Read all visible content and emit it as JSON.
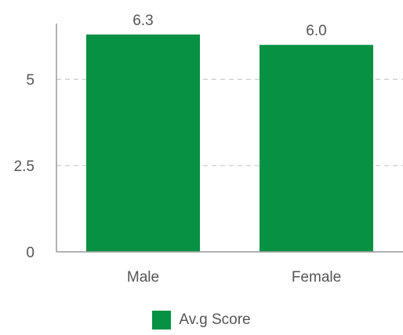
{
  "chart_data": {
    "type": "bar",
    "categories": [
      "Male",
      "Female"
    ],
    "series": [
      {
        "name": "Av.g Score",
        "values": [
          6.3,
          6.0
        ],
        "color": "#079142"
      }
    ],
    "data_labels": [
      "6.3",
      "6.0"
    ],
    "yticks": [
      0,
      2.5,
      5
    ],
    "ytick_labels": [
      "0",
      "2.5",
      "5"
    ],
    "ylim": [
      0,
      6.3
    ],
    "grid": "horizontal-dashed",
    "legend_position": "bottom-center",
    "title": "",
    "xlabel": "",
    "ylabel": ""
  }
}
